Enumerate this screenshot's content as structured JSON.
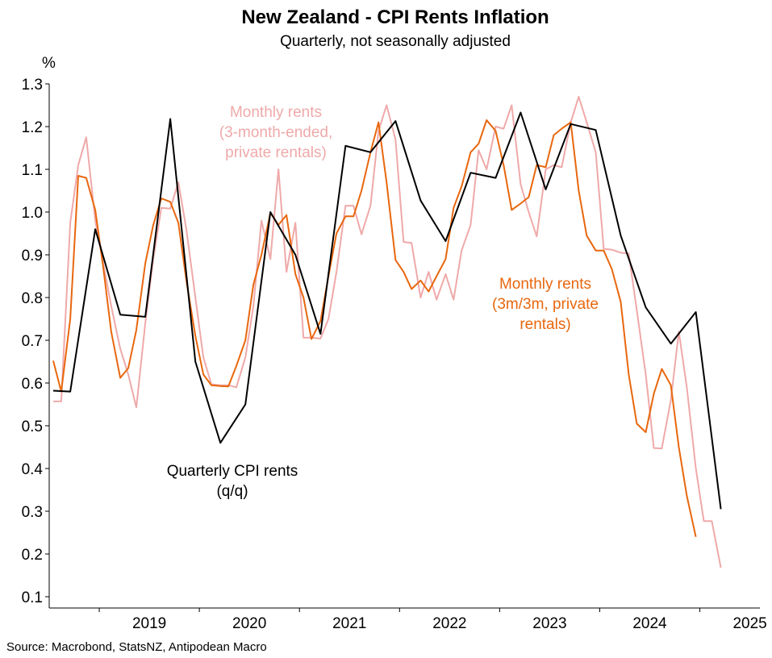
{
  "chart_data": {
    "type": "line",
    "title": "New Zealand - CPI Rents Inflation",
    "subtitle": "Quarterly, not seasonally adjusted",
    "ylabel": "%",
    "ylim": [
      0.07,
      1.3
    ],
    "yticks": [
      0.1,
      0.2,
      0.3,
      0.4,
      0.5,
      0.6,
      0.7,
      0.8,
      0.9,
      1.0,
      1.1,
      1.2,
      1.3
    ],
    "ytick_labels": [
      "0.1",
      "0.2",
      "0.3",
      "0.4",
      "0.5",
      "0.6",
      "0.7",
      "0.8",
      "0.9",
      "1.0",
      "1.1",
      "1.2",
      "1.3"
    ],
    "xlim": [
      2018.5,
      2025.6
    ],
    "years": [
      "2019",
      "2020",
      "2021",
      "2022",
      "2023",
      "2024",
      "2025"
    ],
    "series": [
      {
        "name": "Monthly rents (3-month-ended, private rentals)",
        "label_lines": [
          "Monthly rents",
          "(3-month-ended,",
          "private rentals)"
        ],
        "color": "#efa9a9",
        "points": [
          [
            2018.54,
            0.557
          ],
          [
            2018.62,
            0.557
          ],
          [
            2018.71,
            0.975
          ],
          [
            2018.79,
            1.11
          ],
          [
            2018.87,
            1.175
          ],
          [
            2018.96,
            0.98
          ],
          [
            2019.04,
            0.88
          ],
          [
            2019.12,
            0.78
          ],
          [
            2019.21,
            0.68
          ],
          [
            2019.29,
            0.62
          ],
          [
            2019.37,
            0.543
          ],
          [
            2019.46,
            0.74
          ],
          [
            2019.54,
            0.89
          ],
          [
            2019.62,
            1.01
          ],
          [
            2019.71,
            1.008
          ],
          [
            2019.79,
            1.07
          ],
          [
            2019.87,
            0.96
          ],
          [
            2019.96,
            0.8
          ],
          [
            2020.04,
            0.66
          ],
          [
            2020.12,
            0.597
          ],
          [
            2020.21,
            0.595
          ],
          [
            2020.29,
            0.595
          ],
          [
            2020.37,
            0.59
          ],
          [
            2020.46,
            0.66
          ],
          [
            2020.54,
            0.78
          ],
          [
            2020.62,
            0.98
          ],
          [
            2020.71,
            0.89
          ],
          [
            2020.79,
            1.1
          ],
          [
            2020.87,
            0.86
          ],
          [
            2020.96,
            0.975
          ],
          [
            2021.04,
            0.706
          ],
          [
            2021.12,
            0.706
          ],
          [
            2021.21,
            0.704
          ],
          [
            2021.29,
            0.75
          ],
          [
            2021.37,
            0.86
          ],
          [
            2021.46,
            1.015
          ],
          [
            2021.54,
            1.015
          ],
          [
            2021.62,
            0.948
          ],
          [
            2021.71,
            1.015
          ],
          [
            2021.79,
            1.19
          ],
          [
            2021.87,
            1.25
          ],
          [
            2021.96,
            1.17
          ],
          [
            2022.04,
            0.93
          ],
          [
            2022.12,
            0.928
          ],
          [
            2022.21,
            0.8
          ],
          [
            2022.29,
            0.86
          ],
          [
            2022.37,
            0.795
          ],
          [
            2022.46,
            0.855
          ],
          [
            2022.54,
            0.795
          ],
          [
            2022.62,
            0.91
          ],
          [
            2022.71,
            0.97
          ],
          [
            2022.79,
            1.145
          ],
          [
            2022.87,
            1.1
          ],
          [
            2022.96,
            1.2
          ],
          [
            2023.04,
            1.195
          ],
          [
            2023.12,
            1.25
          ],
          [
            2023.21,
            1.065
          ],
          [
            2023.29,
            1.0
          ],
          [
            2023.37,
            0.943
          ],
          [
            2023.46,
            1.1
          ],
          [
            2023.54,
            1.11
          ],
          [
            2023.62,
            1.105
          ],
          [
            2023.71,
            1.21
          ],
          [
            2023.79,
            1.27
          ],
          [
            2023.87,
            1.21
          ],
          [
            2023.96,
            1.14
          ],
          [
            2024.04,
            0.914
          ],
          [
            2024.12,
            0.912
          ],
          [
            2024.21,
            0.905
          ],
          [
            2024.29,
            0.903
          ],
          [
            2024.37,
            0.77
          ],
          [
            2024.46,
            0.62
          ],
          [
            2024.54,
            0.448
          ],
          [
            2024.62,
            0.447
          ],
          [
            2024.71,
            0.56
          ],
          [
            2024.79,
            0.72
          ],
          [
            2024.87,
            0.59
          ],
          [
            2024.96,
            0.4
          ],
          [
            2025.04,
            0.277
          ],
          [
            2025.12,
            0.277
          ],
          [
            2025.21,
            0.168
          ]
        ]
      },
      {
        "name": "Monthly rents (3m/3m, private rentals)",
        "label_lines": [
          "Monthly rents",
          "(3m/3m, private",
          "rentals)"
        ],
        "color": "#e8670e",
        "points": [
          [
            2018.54,
            0.652
          ],
          [
            2018.62,
            0.58
          ],
          [
            2018.71,
            0.75
          ],
          [
            2018.79,
            1.085
          ],
          [
            2018.87,
            1.08
          ],
          [
            2018.96,
            1.005
          ],
          [
            2019.04,
            0.87
          ],
          [
            2019.12,
            0.72
          ],
          [
            2019.21,
            0.612
          ],
          [
            2019.29,
            0.635
          ],
          [
            2019.37,
            0.724
          ],
          [
            2019.46,
            0.88
          ],
          [
            2019.54,
            0.97
          ],
          [
            2019.62,
            1.032
          ],
          [
            2019.71,
            1.024
          ],
          [
            2019.79,
            0.975
          ],
          [
            2019.87,
            0.84
          ],
          [
            2019.96,
            0.71
          ],
          [
            2020.04,
            0.62
          ],
          [
            2020.12,
            0.595
          ],
          [
            2020.21,
            0.593
          ],
          [
            2020.29,
            0.592
          ],
          [
            2020.37,
            0.64
          ],
          [
            2020.46,
            0.7
          ],
          [
            2020.54,
            0.83
          ],
          [
            2020.62,
            0.9
          ],
          [
            2020.71,
            0.998
          ],
          [
            2020.79,
            0.97
          ],
          [
            2020.87,
            0.993
          ],
          [
            2020.96,
            0.855
          ],
          [
            2021.04,
            0.8
          ],
          [
            2021.12,
            0.703
          ],
          [
            2021.21,
            0.745
          ],
          [
            2021.29,
            0.85
          ],
          [
            2021.37,
            0.95
          ],
          [
            2021.46,
            0.99
          ],
          [
            2021.54,
            0.99
          ],
          [
            2021.62,
            1.05
          ],
          [
            2021.71,
            1.14
          ],
          [
            2021.79,
            1.21
          ],
          [
            2021.87,
            1.07
          ],
          [
            2021.96,
            0.888
          ],
          [
            2022.04,
            0.86
          ],
          [
            2022.12,
            0.82
          ],
          [
            2022.21,
            0.84
          ],
          [
            2022.29,
            0.814
          ],
          [
            2022.37,
            0.85
          ],
          [
            2022.46,
            0.89
          ],
          [
            2022.54,
            1.01
          ],
          [
            2022.62,
            1.06
          ],
          [
            2022.71,
            1.14
          ],
          [
            2022.79,
            1.16
          ],
          [
            2022.87,
            1.215
          ],
          [
            2022.96,
            1.19
          ],
          [
            2023.04,
            1.11
          ],
          [
            2023.12,
            1.005
          ],
          [
            2023.21,
            1.02
          ],
          [
            2023.29,
            1.035
          ],
          [
            2023.37,
            1.11
          ],
          [
            2023.46,
            1.105
          ],
          [
            2023.54,
            1.18
          ],
          [
            2023.62,
            1.195
          ],
          [
            2023.71,
            1.21
          ],
          [
            2023.79,
            1.05
          ],
          [
            2023.87,
            0.945
          ],
          [
            2023.96,
            0.91
          ],
          [
            2024.04,
            0.91
          ],
          [
            2024.12,
            0.867
          ],
          [
            2024.21,
            0.79
          ],
          [
            2024.29,
            0.62
          ],
          [
            2024.37,
            0.505
          ],
          [
            2024.46,
            0.485
          ],
          [
            2024.54,
            0.575
          ],
          [
            2024.62,
            0.633
          ],
          [
            2024.71,
            0.595
          ],
          [
            2024.79,
            0.45
          ],
          [
            2024.87,
            0.336
          ],
          [
            2024.96,
            0.24
          ]
        ]
      },
      {
        "name": "Quarterly CPI rents (q/q)",
        "label_lines": [
          "Quarterly CPI rents",
          "(q/q)"
        ],
        "color": "#000000",
        "points": [
          [
            2018.54,
            0.582
          ],
          [
            2018.71,
            0.58
          ],
          [
            2018.96,
            0.96
          ],
          [
            2019.21,
            0.76
          ],
          [
            2019.46,
            0.755
          ],
          [
            2019.71,
            1.218
          ],
          [
            2019.96,
            0.65
          ],
          [
            2020.21,
            0.46
          ],
          [
            2020.46,
            0.55
          ],
          [
            2020.71,
            1.0
          ],
          [
            2020.96,
            0.9
          ],
          [
            2021.21,
            0.715
          ],
          [
            2021.46,
            1.155
          ],
          [
            2021.71,
            1.14
          ],
          [
            2021.96,
            1.213
          ],
          [
            2022.21,
            1.027
          ],
          [
            2022.46,
            0.932
          ],
          [
            2022.71,
            1.092
          ],
          [
            2022.96,
            1.08
          ],
          [
            2023.21,
            1.233
          ],
          [
            2023.46,
            1.053
          ],
          [
            2023.71,
            1.206
          ],
          [
            2023.96,
            1.192
          ],
          [
            2024.21,
            0.945
          ],
          [
            2024.46,
            0.777
          ],
          [
            2024.71,
            0.692
          ],
          [
            2024.96,
            0.766
          ],
          [
            2025.21,
            0.305
          ]
        ]
      }
    ],
    "source": "Source: Macrobond, StatsNZ, Antipodean Macro"
  }
}
